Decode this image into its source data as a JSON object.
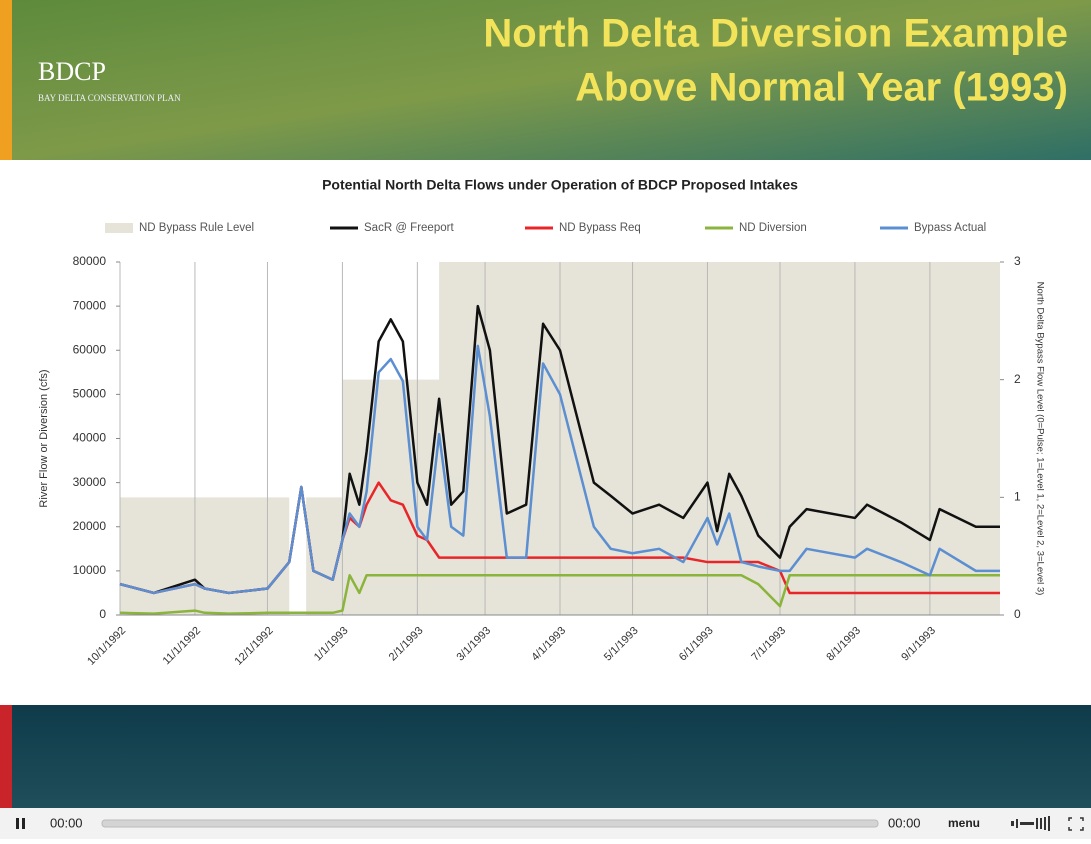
{
  "header": {
    "logo": "BDCP",
    "logo_subtitle": "BAY DELTA CONSERVATION PLAN",
    "title_line1": "North Delta Diversion Example",
    "title_line2": "Above Normal Year (1993)"
  },
  "chart_data": {
    "type": "line",
    "title": "Potential North Delta Flows under Operation of BDCP Proposed Intakes",
    "y_label": "River Flow or Diversion (cfs)",
    "y2_label": "North Delta Bypass Flow Level (0=Pulse; 1=Level 1, 2=Level 2, 3=Level 3)",
    "x": [
      "10/1/1992",
      "10/15/1992",
      "11/1/1992",
      "11/5/1992",
      "11/15/1992",
      "12/1/1992",
      "12/10/1992",
      "12/15/1992",
      "12/20/1992",
      "12/28/1992",
      "1/1/1993",
      "1/4/1993",
      "1/8/1993",
      "1/11/1993",
      "1/16/1993",
      "1/21/1993",
      "1/26/1993",
      "2/1/1993",
      "2/5/1993",
      "2/10/1993",
      "2/15/1993",
      "2/20/1993",
      "2/26/1993",
      "3/3/1993",
      "3/10/1993",
      "3/18/1993",
      "3/25/1993",
      "4/1/1993",
      "4/8/1993",
      "4/15/1993",
      "4/22/1993",
      "5/1/1993",
      "5/12/1993",
      "5/22/1993",
      "6/1/1993",
      "6/5/1993",
      "6/10/1993",
      "6/15/1993",
      "6/22/1993",
      "7/1/1993",
      "7/5/1993",
      "7/12/1993",
      "8/1/1993",
      "8/6/1993",
      "8/20/1993",
      "9/1/1993",
      "9/5/1993",
      "9/20/1993",
      "9/30/1993"
    ],
    "xlim": [
      "10/1/1992",
      "9/30/1993"
    ],
    "xticks": [
      "10/1/1992",
      "11/1/1992",
      "12/1/1992",
      "1/1/1993",
      "2/1/1993",
      "3/1/1993",
      "4/1/1993",
      "5/1/1993",
      "6/1/1993",
      "7/1/1993",
      "8/1/1993",
      "9/1/1993"
    ],
    "ylim": [
      0,
      80000
    ],
    "yticks": [
      0,
      10000,
      20000,
      30000,
      40000,
      50000,
      60000,
      70000,
      80000
    ],
    "y2lim": [
      0,
      3
    ],
    "y2ticks": [
      0,
      1,
      2,
      3
    ],
    "grid": "x",
    "series": [
      {
        "name": "ND Bypass Rule Level",
        "color": "#e6e4d8",
        "style": "step-area",
        "axis": "y2",
        "x": [
          "10/1/1992",
          "12/10/1992",
          "12/17/1992",
          "1/1/1993",
          "2/10/1993"
        ],
        "values": [
          1,
          0,
          1,
          2,
          3
        ]
      },
      {
        "name": "SacR @ Freeport",
        "color": "#111111",
        "values": [
          7000,
          5000,
          8000,
          6000,
          5000,
          6000,
          12000,
          29000,
          10000,
          8000,
          17000,
          32000,
          25000,
          37000,
          62000,
          67000,
          62000,
          30000,
          25000,
          49000,
          25000,
          28000,
          70000,
          60000,
          23000,
          25000,
          66000,
          60000,
          45000,
          30000,
          27000,
          23000,
          25000,
          22000,
          30000,
          19000,
          32000,
          27000,
          18000,
          13000,
          20000,
          24000,
          22000,
          25000,
          21000,
          17000,
          24000,
          20000,
          20000
        ]
      },
      {
        "name": "ND Bypass Req",
        "color": "#e8262a",
        "values": [
          7000,
          5000,
          7000,
          6000,
          5000,
          6000,
          12000,
          29000,
          10000,
          8000,
          17000,
          22000,
          20000,
          25000,
          30000,
          26000,
          25000,
          18000,
          17000,
          13000,
          13000,
          13000,
          13000,
          13000,
          13000,
          13000,
          13000,
          13000,
          13000,
          13000,
          13000,
          13000,
          13000,
          13000,
          12000,
          12000,
          12000,
          12000,
          12000,
          10000,
          5000,
          5000,
          5000,
          5000,
          5000,
          5000,
          5000,
          5000,
          5000
        ]
      },
      {
        "name": "ND Diversion",
        "color": "#8ab43c",
        "values": [
          500,
          300,
          1000,
          500,
          300,
          500,
          500,
          500,
          500,
          500,
          1000,
          9000,
          5000,
          9000,
          9000,
          9000,
          9000,
          9000,
          9000,
          9000,
          9000,
          9000,
          9000,
          9000,
          9000,
          9000,
          9000,
          9000,
          9000,
          9000,
          9000,
          9000,
          9000,
          9000,
          9000,
          9000,
          9000,
          9000,
          7000,
          2000,
          9000,
          9000,
          9000,
          9000,
          9000,
          9000,
          9000,
          9000,
          9000
        ]
      },
      {
        "name": "Bypass Actual",
        "color": "#5b8fd1",
        "values": [
          7000,
          5000,
          7000,
          6000,
          5000,
          6000,
          12000,
          29000,
          10000,
          8000,
          17000,
          23000,
          20000,
          28000,
          55000,
          58000,
          53000,
          20000,
          17000,
          41000,
          20000,
          18000,
          61000,
          45000,
          13000,
          13000,
          57000,
          50000,
          35000,
          20000,
          15000,
          14000,
          15000,
          12000,
          22000,
          16000,
          23000,
          12000,
          11000,
          10000,
          10000,
          15000,
          13000,
          15000,
          12000,
          9000,
          15000,
          10000,
          10000
        ]
      }
    ]
  },
  "player": {
    "elapsed": "00:00",
    "duration": "00:00",
    "menu": "menu"
  }
}
